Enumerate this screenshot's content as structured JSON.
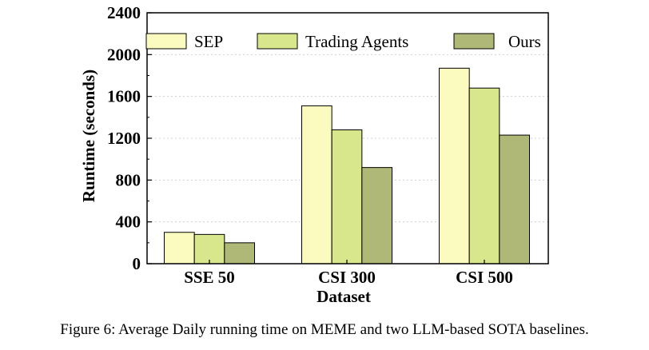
{
  "chart_data": {
    "type": "bar",
    "title": "",
    "xlabel": "Dataset",
    "ylabel": "Runtime (seconds)",
    "ylim": [
      0,
      2400
    ],
    "yticks": [
      0,
      400,
      800,
      1200,
      1600,
      2000,
      2400
    ],
    "grid": true,
    "legend_position": "top",
    "categories": [
      "SSE 50",
      "CSI 300",
      "CSI 500"
    ],
    "series": [
      {
        "name": "SEP",
        "color": "#fcfbbf",
        "values": [
          300,
          1510,
          1870
        ]
      },
      {
        "name": "Trading Agents",
        "color": "#d9e78c",
        "values": [
          280,
          1280,
          1680
        ]
      },
      {
        "name": "Ours",
        "color": "#afb876",
        "values": [
          200,
          920,
          1230
        ]
      }
    ]
  },
  "caption": "Figure 6: Average Daily running time on MEME and two LLM-based SOTA baselines."
}
